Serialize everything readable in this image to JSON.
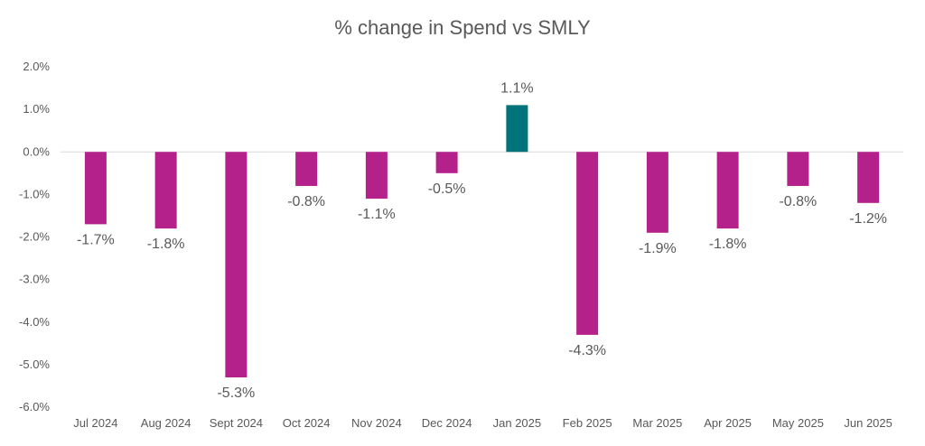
{
  "chart_data": {
    "type": "bar",
    "title": "% change in Spend vs SMLY",
    "xlabel": "",
    "ylabel": "",
    "categories": [
      "Jul 2024",
      "Aug 2024",
      "Sept 2024",
      "Oct 2024",
      "Nov 2024",
      "Dec 2024",
      "Jan 2025",
      "Feb 2025",
      "Mar 2025",
      "Apr 2025",
      "May 2025",
      "Jun 2025"
    ],
    "values": [
      -1.7,
      -1.8,
      -5.3,
      -0.8,
      -1.1,
      -0.5,
      1.1,
      -4.3,
      -1.9,
      -1.8,
      -0.8,
      -1.2
    ],
    "data_labels": [
      "-1.7%",
      "-1.8%",
      "-5.3%",
      "-0.8%",
      "-1.1%",
      "-0.5%",
      "1.1%",
      "-4.3%",
      "-1.9%",
      "-1.8%",
      "-0.8%",
      "-1.2%"
    ],
    "ylim": [
      -6.0,
      2.0
    ],
    "yticks": [
      2.0,
      1.0,
      0.0,
      -1.0,
      -2.0,
      -3.0,
      -4.0,
      -5.0,
      -6.0
    ],
    "ytick_labels": [
      "2.0%",
      "1.0%",
      "0.0%",
      "-1.0%",
      "-2.0%",
      "-3.0%",
      "-4.0%",
      "-5.0%",
      "-6.0%"
    ],
    "grid": false,
    "legend": "none",
    "colors": {
      "negative": "#B5218A",
      "positive": "#00747A",
      "zero_line": "#D9D9D9",
      "text": "#595959"
    }
  }
}
